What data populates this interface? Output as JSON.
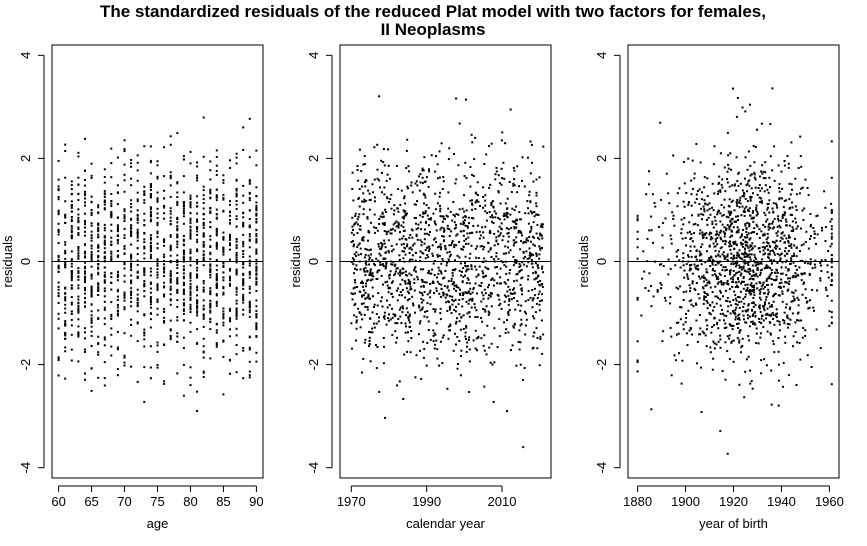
{
  "figure": {
    "title_line1": "The standardized residuals of the reduced Plat model with two factors for females,",
    "title_line2": "II Neoplasms"
  },
  "chart_data": [
    {
      "type": "scatter",
      "xlabel": "age",
      "ylabel": "residuals",
      "xlim": [
        59,
        91
      ],
      "ylim": [
        -4.2,
        4.2
      ],
      "xticks": [
        60,
        65,
        70,
        75,
        80,
        85,
        90
      ],
      "yticks": [
        -4,
        -2,
        0,
        2,
        4
      ],
      "reference_line_y": 0,
      "x_range": [
        60,
        90
      ],
      "x_discrete": true,
      "n_points": 1550,
      "residual_sd": 1.0,
      "marker_color": "#000000"
    },
    {
      "type": "scatter",
      "xlabel": "calendar year",
      "ylabel": "residuals",
      "xlim": [
        1967,
        2023
      ],
      "ylim": [
        -4.2,
        4.2
      ],
      "xticks": [
        1970,
        1990,
        2010
      ],
      "yticks": [
        -4,
        -2,
        0,
        2,
        4
      ],
      "reference_line_y": 0,
      "x_range": [
        1970,
        2021
      ],
      "x_discrete": false,
      "n_points": 1550,
      "residual_sd": 1.0,
      "marker_color": "#000000"
    },
    {
      "type": "scatter",
      "xlabel": "year of birth",
      "ylabel": "residuals",
      "xlim": [
        1876,
        1964
      ],
      "ylim": [
        -4.2,
        4.2
      ],
      "xticks": [
        1880,
        1900,
        1920,
        1940,
        1960
      ],
      "yticks": [
        -4,
        -2,
        0,
        2,
        4
      ],
      "reference_line_y": 0,
      "x_range": [
        1880,
        1961
      ],
      "x_discrete": false,
      "n_points": 1550,
      "residual_sd": 1.0,
      "marker_color": "#000000"
    }
  ]
}
